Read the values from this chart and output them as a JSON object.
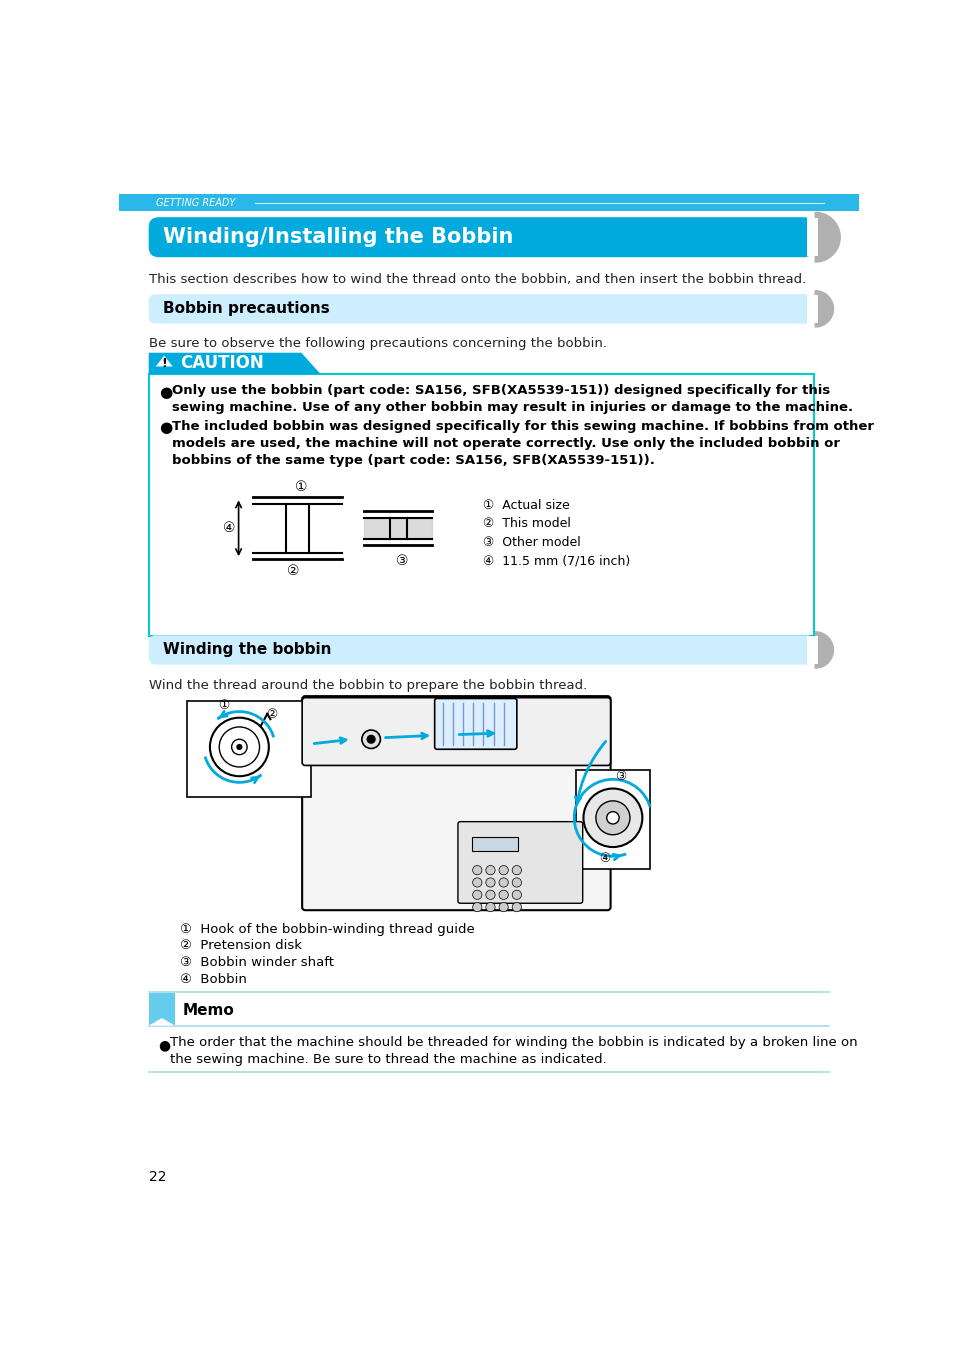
{
  "page_bg": "#ffffff",
  "header_bar_color": "#29b8e8",
  "header_text": "GETTING READY",
  "section1_title": "Winding/Installing the Bobbin",
  "section1_bg": "#00aadd",
  "section1_text_color": "#ffffff",
  "section1_body": "This section describes how to wind the thread onto the bobbin, and then insert the bobbin thread.",
  "section2_title": "Bobbin precautions",
  "section2_bg": "#cceeff",
  "section2_text_color": "#000000",
  "caution_bg": "#00aadd",
  "caution_text": "CAUTION",
  "caution_box_border": "#00cccc",
  "bullet1_line1": "Only use the bobbin (part code: SA156, SFB(XA5539-151)) designed specifically for this",
  "bullet1_line2": "sewing machine. Use of any other bobbin may result in injuries or damage to the machine.",
  "bullet2_line1": "The included bobbin was designed specifically for this sewing machine. If bobbins from other",
  "bullet2_line2": "models are used, the machine will not operate correctly. Use only the included bobbin or",
  "bullet2_line3": "bobbins of the same type (part code: SA156, SFB(XA5539-151)).",
  "bobbin_legend": [
    "Actual size",
    "This model",
    "Other model",
    "11.5 mm (7/16 inch)"
  ],
  "section3_title": "Winding the bobbin",
  "section3_bg": "#cceeff",
  "section3_text_color": "#000000",
  "section3_body": "Wind the thread around the bobbin to prepare the bobbin thread.",
  "winding_legend": [
    "Hook of the bobbin-winding thread guide",
    "Pretension disk",
    "Bobbin winder shaft",
    "Bobbin"
  ],
  "memo_title": "Memo",
  "memo_text": "The order that the machine should be threaded for winding the bobbin is indicated by a broken line on\nthe sewing machine. Be sure to thread the machine as indicated.",
  "page_number": "22",
  "arrow_color": "#00aadd",
  "gray_tab": "#b0b0b0"
}
